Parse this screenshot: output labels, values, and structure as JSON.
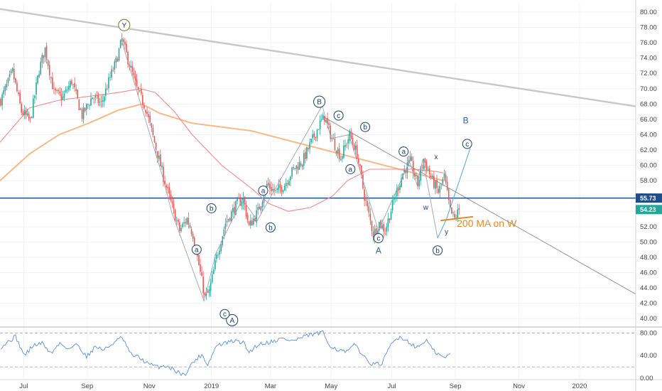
{
  "chart_data": {
    "type": "candlestick",
    "title": "",
    "colors": {
      "up": "#26a69a",
      "down": "#ef5350",
      "ma_long": "#f7b987",
      "ma_short": "#f08a8a",
      "trendline": "#c7c7c7",
      "level": "#1e4d8c",
      "annotation": "#e08a1e",
      "rsi": "#5b8fd6",
      "wave": "#1e3f66",
      "projection": "#5aa0d8"
    },
    "x_axis": {
      "ticks": [
        {
          "label": "Jul",
          "index": 16
        },
        {
          "label": "Sep",
          "index": 59
        },
        {
          "label": "Nov",
          "index": 101
        },
        {
          "label": "2019",
          "index": 143
        },
        {
          "label": "Mar",
          "index": 183
        },
        {
          "label": "May",
          "index": 224
        },
        {
          "label": "Jul",
          "index": 265
        },
        {
          "label": "Sep",
          "index": 308
        },
        {
          "label": "Nov",
          "index": 351
        },
        {
          "label": "2020",
          "index": 392
        }
      ],
      "range": [
        0,
        430
      ]
    },
    "price_axis": {
      "range": [
        39.0,
        81.2
      ],
      "ticks": [
        "80.00",
        "78.00",
        "76.00",
        "74.00",
        "72.00",
        "70.00",
        "68.00",
        "66.00",
        "64.00",
        "62.00",
        "60.00",
        "58.00",
        "56.00",
        "54.00",
        "52.00",
        "50.00",
        "48.00",
        "46.00",
        "44.00",
        "42.00",
        "40.00"
      ]
    },
    "price_tags": [
      {
        "label": "55.73",
        "value": 55.73,
        "color": "#1e4d8c"
      },
      {
        "label": "54.23",
        "value": 54.23,
        "color": "#26a69a"
      }
    ],
    "key_points": [
      {
        "i": 0,
        "v": 68.5
      },
      {
        "i": 8,
        "v": 72.2
      },
      {
        "i": 14,
        "v": 67.0
      },
      {
        "i": 20,
        "v": 65.8
      },
      {
        "i": 26,
        "v": 72.5
      },
      {
        "i": 30,
        "v": 75.2
      },
      {
        "i": 36,
        "v": 69.5
      },
      {
        "i": 42,
        "v": 68.8
      },
      {
        "i": 48,
        "v": 71.0
      },
      {
        "i": 55,
        "v": 66.5
      },
      {
        "i": 62,
        "v": 69.0
      },
      {
        "i": 68,
        "v": 68.0
      },
      {
        "i": 74,
        "v": 71.5
      },
      {
        "i": 78,
        "v": 73.5
      },
      {
        "i": 82,
        "v": 76.4
      },
      {
        "i": 87,
        "v": 73.2
      },
      {
        "i": 92,
        "v": 70.0
      },
      {
        "i": 98,
        "v": 67.5
      },
      {
        "i": 104,
        "v": 63.0
      },
      {
        "i": 110,
        "v": 58.5
      },
      {
        "i": 116,
        "v": 54.5
      },
      {
        "i": 121,
        "v": 51.5
      },
      {
        "i": 126,
        "v": 53.0
      },
      {
        "i": 130,
        "v": 51.0
      },
      {
        "i": 134,
        "v": 47.0
      },
      {
        "i": 138,
        "v": 42.8
      },
      {
        "i": 141,
        "v": 43.5
      },
      {
        "i": 146,
        "v": 48.0
      },
      {
        "i": 152,
        "v": 52.5
      },
      {
        "i": 160,
        "v": 55.0
      },
      {
        "i": 164,
        "v": 55.6
      },
      {
        "i": 168,
        "v": 52.0
      },
      {
        "i": 174,
        "v": 54.0
      },
      {
        "i": 180,
        "v": 57.5
      },
      {
        "i": 186,
        "v": 56.5
      },
      {
        "i": 192,
        "v": 57.5
      },
      {
        "i": 198,
        "v": 59.5
      },
      {
        "i": 204,
        "v": 60.5
      },
      {
        "i": 210,
        "v": 63.0
      },
      {
        "i": 216,
        "v": 65.5
      },
      {
        "i": 219,
        "v": 66.3
      },
      {
        "i": 224,
        "v": 63.5
      },
      {
        "i": 230,
        "v": 61.0
      },
      {
        "i": 236,
        "v": 64.0
      },
      {
        "i": 241,
        "v": 61.5
      },
      {
        "i": 246,
        "v": 56.0
      },
      {
        "i": 252,
        "v": 51.0
      },
      {
        "i": 256,
        "v": 52.5
      },
      {
        "i": 260,
        "v": 51.5
      },
      {
        "i": 266,
        "v": 55.5
      },
      {
        "i": 272,
        "v": 59.0
      },
      {
        "i": 277,
        "v": 60.5
      },
      {
        "i": 282,
        "v": 57.5
      },
      {
        "i": 286,
        "v": 60.8
      },
      {
        "i": 292,
        "v": 58.0
      },
      {
        "i": 296,
        "v": 56.5
      },
      {
        "i": 300,
        "v": 58.5
      },
      {
        "i": 304,
        "v": 54.0
      },
      {
        "i": 307,
        "v": 53.0
      },
      {
        "i": 310,
        "v": 54.2
      }
    ],
    "ma_long": [
      [
        0,
        58.0
      ],
      [
        20,
        61.5
      ],
      [
        40,
        64.0
      ],
      [
        60,
        65.5
      ],
      [
        80,
        67.2
      ],
      [
        96,
        68.0
      ],
      [
        108,
        66.8
      ],
      [
        130,
        65.5
      ],
      [
        150,
        65.0
      ],
      [
        170,
        64.5
      ],
      [
        190,
        63.5
      ],
      [
        210,
        62.5
      ],
      [
        230,
        61.5
      ],
      [
        250,
        60.5
      ],
      [
        270,
        59.5
      ],
      [
        290,
        58.5
      ],
      [
        300,
        58.0
      ]
    ],
    "ma_short": [
      [
        0,
        63.0
      ],
      [
        20,
        67.5
      ],
      [
        40,
        68.5
      ],
      [
        60,
        69.0
      ],
      [
        80,
        69.5
      ],
      [
        95,
        70.0
      ],
      [
        105,
        69.5
      ],
      [
        118,
        67.0
      ],
      [
        130,
        64.0
      ],
      [
        150,
        60.0
      ],
      [
        170,
        57.0
      ],
      [
        182,
        55.0
      ],
      [
        195,
        54.0
      ],
      [
        210,
        54.5
      ],
      [
        225,
        56.0
      ],
      [
        235,
        58.0
      ],
      [
        250,
        59.5
      ],
      [
        265,
        59.5
      ],
      [
        280,
        59.5
      ],
      [
        295,
        59.2
      ],
      [
        300,
        59.0
      ]
    ],
    "resistance_line": {
      "from": [
        0,
        80.4
      ],
      "to": [
        430,
        67.7
      ]
    },
    "descending_line": {
      "from": [
        219,
        66.3
      ],
      "to": [
        430,
        43.2
      ]
    },
    "level_value": 55.73,
    "orange_segment": {
      "from": [
        298,
        52.8
      ],
      "to": [
        320,
        53.3
      ]
    },
    "wave_path": [
      [
        82,
        76.4
      ],
      [
        110,
        58.5
      ],
      [
        116,
        54.0
      ],
      [
        138,
        42.3
      ],
      [
        146,
        48.5
      ],
      [
        164,
        55.6
      ],
      [
        174,
        52.8
      ],
      [
        218,
        67.8
      ],
      [
        224,
        63.5
      ],
      [
        236,
        64.0
      ],
      [
        256,
        51.5
      ],
      [
        277,
        60.5
      ],
      [
        282,
        57.5
      ],
      [
        286,
        60.8
      ],
      [
        296,
        50.5
      ]
    ],
    "projection_path": [
      [
        296,
        50.5
      ],
      [
        302,
        53.0
      ],
      [
        318,
        62.2
      ]
    ],
    "labels_circled": [
      {
        "text": "Y",
        "i": 84,
        "v": 78.3,
        "color": "#6a7a2a"
      },
      {
        "text": "B",
        "i": 216,
        "v": 68.3
      },
      {
        "text": "A",
        "i": 157,
        "v": 39.8
      },
      {
        "text": "c",
        "i": 229,
        "v": 66.5
      },
      {
        "text": "b",
        "i": 247,
        "v": 65.0
      },
      {
        "text": "a",
        "i": 237,
        "v": 59.5
      },
      {
        "text": "a",
        "i": 273,
        "v": 61.8
      },
      {
        "text": "c",
        "i": 256,
        "v": 50.5
      },
      {
        "text": "b",
        "i": 296,
        "v": 48.9
      },
      {
        "text": "c",
        "i": 316,
        "v": 62.8
      },
      {
        "text": "a",
        "i": 133,
        "v": 49.0
      },
      {
        "text": "b",
        "i": 143,
        "v": 54.4
      },
      {
        "text": "a",
        "i": 178,
        "v": 56.7
      },
      {
        "text": "b",
        "i": 183,
        "v": 51.9
      },
      {
        "text": "c",
        "i": 152,
        "v": 40.6
      }
    ],
    "labels_plain": [
      {
        "text": "A",
        "i": 256,
        "v": 48.5,
        "kind": "big"
      },
      {
        "text": "B",
        "i": 315,
        "v": 65.5,
        "kind": "big"
      },
      {
        "text": "x",
        "i": 295,
        "v": 60.8,
        "kind": "small"
      },
      {
        "text": "w",
        "i": 288,
        "v": 54.2,
        "kind": "small"
      },
      {
        "text": "y",
        "i": 302,
        "v": 51.0,
        "kind": "small"
      }
    ],
    "annotation": {
      "text": "200 MA on W",
      "i": 309,
      "v": 52.0
    },
    "rsi": {
      "range": [
        0,
        88
      ],
      "ticks": [
        "80.00",
        "40.00",
        "0.00"
      ],
      "levels": [
        80,
        20
      ],
      "key_points": [
        [
          0,
          55
        ],
        [
          10,
          74
        ],
        [
          16,
          40
        ],
        [
          22,
          58
        ],
        [
          28,
          62
        ],
        [
          34,
          44
        ],
        [
          40,
          62
        ],
        [
          46,
          52
        ],
        [
          52,
          60
        ],
        [
          58,
          38
        ],
        [
          64,
          56
        ],
        [
          70,
          50
        ],
        [
          76,
          62
        ],
        [
          82,
          72
        ],
        [
          88,
          42
        ],
        [
          94,
          36
        ],
        [
          100,
          25
        ],
        [
          106,
          20
        ],
        [
          112,
          22
        ],
        [
          118,
          14
        ],
        [
          124,
          5
        ],
        [
          130,
          28
        ],
        [
          136,
          42
        ],
        [
          140,
          24
        ],
        [
          146,
          58
        ],
        [
          152,
          62
        ],
        [
          158,
          66
        ],
        [
          164,
          63
        ],
        [
          168,
          46
        ],
        [
          174,
          60
        ],
        [
          182,
          64
        ],
        [
          190,
          70
        ],
        [
          198,
          66
        ],
        [
          206,
          74
        ],
        [
          212,
          78
        ],
        [
          218,
          80
        ],
        [
          222,
          60
        ],
        [
          228,
          50
        ],
        [
          234,
          46
        ],
        [
          240,
          60
        ],
        [
          246,
          36
        ],
        [
          252,
          24
        ],
        [
          258,
          26
        ],
        [
          264,
          60
        ],
        [
          270,
          74
        ],
        [
          276,
          64
        ],
        [
          282,
          54
        ],
        [
          288,
          68
        ],
        [
          292,
          50
        ],
        [
          296,
          42
        ],
        [
          300,
          36
        ],
        [
          304,
          42
        ]
      ]
    }
  }
}
